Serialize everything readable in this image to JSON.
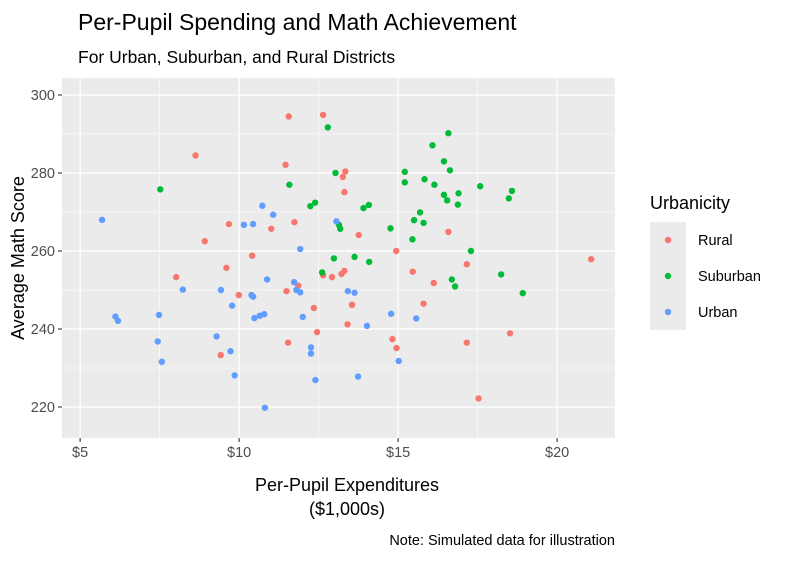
{
  "chart_data": {
    "type": "scatter",
    "title": "Per-Pupil Spending and Math Achievement",
    "subtitle": "For Urban, Suburban, and Rural Districts",
    "xlabel": "Per-Pupil Expenditures\n($1,000s)",
    "xlabel_lines": [
      "Per-Pupil Expenditures",
      "($1,000s)"
    ],
    "ylabel": "Average Math Score",
    "caption": "Note: Simulated data for illustration",
    "xlim": [
      4.43,
      21.82
    ],
    "ylim": [
      212.05,
      304.36
    ],
    "x_ticks": [
      5,
      10,
      15,
      20
    ],
    "x_tick_labels": [
      "$5",
      "$10",
      "$15",
      "$20"
    ],
    "y_ticks": [
      220,
      240,
      260,
      280,
      300
    ],
    "y_tick_labels": [
      "220",
      "240",
      "260",
      "280",
      "300"
    ],
    "grid": true,
    "legend": {
      "title": "Urbanicity",
      "position": "right"
    },
    "series": [
      {
        "name": "Rural",
        "color": "#F8766D",
        "points": [
          [
            8.63,
            284.5
          ],
          [
            11.56,
            294.5
          ],
          [
            12.64,
            294.9
          ],
          [
            11.46,
            282.1
          ],
          [
            9.68,
            266.9
          ],
          [
            11.74,
            267.4
          ],
          [
            11.01,
            265.7
          ],
          [
            8.92,
            262.5
          ],
          [
            10.41,
            258.8
          ],
          [
            9.6,
            255.7
          ],
          [
            8.02,
            253.3
          ],
          [
            9.99,
            248.7
          ],
          [
            11.49,
            249.7
          ],
          [
            11.86,
            251.1
          ],
          [
            12.64,
            253.8
          ],
          [
            12.92,
            253.3
          ],
          [
            13.22,
            254.1
          ],
          [
            13.31,
            254.9
          ],
          [
            12.35,
            245.4
          ],
          [
            12.45,
            239.2
          ],
          [
            11.54,
            236.5
          ],
          [
            9.42,
            233.3
          ],
          [
            13.34,
            280.4
          ],
          [
            13.26,
            279.0
          ],
          [
            13.31,
            275.1
          ],
          [
            13.76,
            264.1
          ],
          [
            16.58,
            264.9
          ],
          [
            14.94,
            260.0
          ],
          [
            21.07,
            257.9
          ],
          [
            17.16,
            256.6
          ],
          [
            15.46,
            254.7
          ],
          [
            16.12,
            251.8
          ],
          [
            13.55,
            246.2
          ],
          [
            15.8,
            246.5
          ],
          [
            13.41,
            241.2
          ],
          [
            14.82,
            237.4
          ],
          [
            14.95,
            235.1
          ],
          [
            17.16,
            236.5
          ],
          [
            18.52,
            238.9
          ],
          [
            17.53,
            222.2
          ]
        ]
      },
      {
        "name": "Suburban",
        "color": "#00BA38",
        "points": [
          [
            7.52,
            275.8
          ],
          [
            12.79,
            291.7
          ],
          [
            13.03,
            280.0
          ],
          [
            11.58,
            277.0
          ],
          [
            12.24,
            271.5
          ],
          [
            12.39,
            272.4
          ],
          [
            13.14,
            266.7
          ],
          [
            13.18,
            265.7
          ],
          [
            12.98,
            258.1
          ],
          [
            12.61,
            254.5
          ],
          [
            16.58,
            290.2
          ],
          [
            16.08,
            287.1
          ],
          [
            16.44,
            283.0
          ],
          [
            16.63,
            280.7
          ],
          [
            15.21,
            280.3
          ],
          [
            15.21,
            277.6
          ],
          [
            15.83,
            278.4
          ],
          [
            16.14,
            277.0
          ],
          [
            17.58,
            276.6
          ],
          [
            18.58,
            275.4
          ],
          [
            18.48,
            273.5
          ],
          [
            16.44,
            274.4
          ],
          [
            16.54,
            273.0
          ],
          [
            16.9,
            274.8
          ],
          [
            16.88,
            271.9
          ],
          [
            13.91,
            271.0
          ],
          [
            14.08,
            271.8
          ],
          [
            14.76,
            265.8
          ],
          [
            15.69,
            269.9
          ],
          [
            15.5,
            267.9
          ],
          [
            15.8,
            267.2
          ],
          [
            15.45,
            263.0
          ],
          [
            17.29,
            260.0
          ],
          [
            13.63,
            258.5
          ],
          [
            14.09,
            257.2
          ],
          [
            16.69,
            252.7
          ],
          [
            16.79,
            250.9
          ],
          [
            18.24,
            254.0
          ],
          [
            18.92,
            249.2
          ]
        ]
      },
      {
        "name": "Urban",
        "color": "#619CFF",
        "points": [
          [
            5.69,
            268.0
          ],
          [
            10.73,
            271.6
          ],
          [
            11.07,
            269.3
          ],
          [
            10.15,
            266.7
          ],
          [
            10.44,
            266.9
          ],
          [
            11.92,
            260.5
          ],
          [
            13.06,
            267.6
          ],
          [
            10.88,
            252.7
          ],
          [
            8.23,
            250.1
          ],
          [
            9.43,
            250.0
          ],
          [
            11.73,
            252.0
          ],
          [
            11.8,
            250.0
          ],
          [
            11.92,
            249.4
          ],
          [
            10.39,
            248.7
          ],
          [
            10.44,
            248.3
          ],
          [
            9.78,
            246.0
          ],
          [
            6.11,
            243.2
          ],
          [
            6.19,
            242.1
          ],
          [
            7.48,
            243.6
          ],
          [
            10.48,
            242.8
          ],
          [
            10.65,
            243.4
          ],
          [
            10.79,
            243.8
          ],
          [
            12.0,
            243.1
          ],
          [
            9.29,
            238.1
          ],
          [
            7.44,
            236.8
          ],
          [
            9.73,
            234.3
          ],
          [
            7.57,
            231.6
          ],
          [
            12.26,
            235.3
          ],
          [
            12.26,
            233.7
          ],
          [
            9.86,
            228.1
          ],
          [
            12.4,
            226.9
          ],
          [
            10.81,
            219.8
          ],
          [
            13.42,
            249.7
          ],
          [
            13.63,
            249.3
          ],
          [
            14.78,
            243.9
          ],
          [
            15.57,
            242.7
          ],
          [
            14.02,
            240.8
          ],
          [
            15.02,
            231.8
          ],
          [
            13.74,
            227.8
          ]
        ]
      }
    ]
  }
}
